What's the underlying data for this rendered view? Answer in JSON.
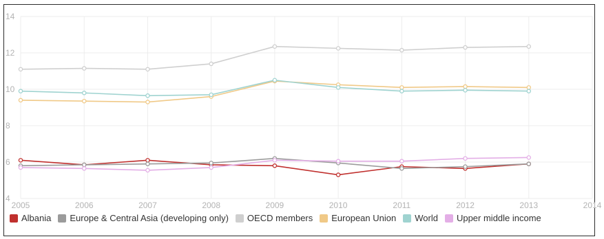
{
  "chart_data": {
    "type": "line",
    "title": "",
    "xlabel": "",
    "ylabel": "",
    "x": [
      2005,
      2006,
      2007,
      2008,
      2009,
      2010,
      2011,
      2012,
      2013
    ],
    "xlim": [
      2005,
      2014
    ],
    "ylim": [
      4,
      14
    ],
    "x_ticks": [
      "2005",
      "2006",
      "2007",
      "2008",
      "2009",
      "2010",
      "2011",
      "2012",
      "2013",
      "2014"
    ],
    "y_ticks": [
      "4",
      "6",
      "8",
      "10",
      "12",
      "14"
    ],
    "grid": true,
    "legend_position": "bottom",
    "series": [
      {
        "name": "Albania",
        "color": "#c0302e",
        "values": [
          6.1,
          5.85,
          6.1,
          5.85,
          5.8,
          5.3,
          5.75,
          5.65,
          5.9
        ]
      },
      {
        "name": "Europe & Central Asia (developing only)",
        "color": "#9b9b9b",
        "values": [
          5.8,
          5.85,
          5.9,
          5.95,
          6.2,
          5.95,
          5.65,
          5.75,
          5.9
        ]
      },
      {
        "name": "OECD members",
        "color": "#cfcfcf",
        "values": [
          11.1,
          11.15,
          11.1,
          11.4,
          12.35,
          12.25,
          12.15,
          12.3,
          12.35
        ]
      },
      {
        "name": "European Union",
        "color": "#f0c987",
        "values": [
          9.4,
          9.35,
          9.3,
          9.6,
          10.45,
          10.25,
          10.1,
          10.15,
          10.1
        ]
      },
      {
        "name": "World",
        "color": "#9fd3d0",
        "values": [
          9.9,
          9.8,
          9.65,
          9.7,
          10.5,
          10.1,
          9.9,
          9.95,
          9.9
        ]
      },
      {
        "name": "Upper middle income",
        "color": "#e3aee6",
        "values": [
          5.7,
          5.65,
          5.55,
          5.7,
          6.1,
          6.05,
          6.05,
          6.2,
          6.25
        ]
      }
    ]
  }
}
